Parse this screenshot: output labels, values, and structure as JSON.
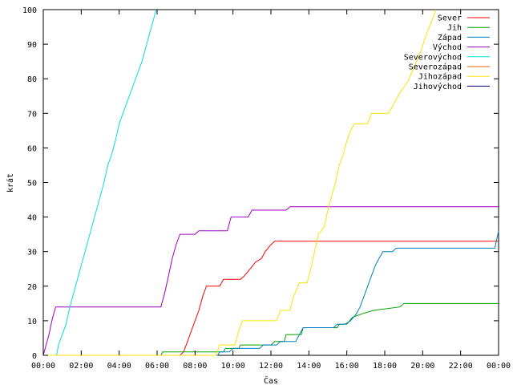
{
  "chart_data": {
    "type": "line",
    "xlabel": "Čas",
    "ylabel": "krát",
    "xlim": [
      0,
      24
    ],
    "ylim": [
      0,
      100
    ],
    "x_ticks": [
      {
        "x": 0,
        "label": "00:00"
      },
      {
        "x": 2,
        "label": "02:00"
      },
      {
        "x": 4,
        "label": "04:00"
      },
      {
        "x": 6,
        "label": "06:00"
      },
      {
        "x": 8,
        "label": "08:00"
      },
      {
        "x": 10,
        "label": "10:00"
      },
      {
        "x": 12,
        "label": "12:00"
      },
      {
        "x": 14,
        "label": "14:00"
      },
      {
        "x": 16,
        "label": "16:00"
      },
      {
        "x": 18,
        "label": "18:00"
      },
      {
        "x": 20,
        "label": "20:00"
      },
      {
        "x": 22,
        "label": "22:00"
      },
      {
        "x": 24,
        "label": "00:00"
      }
    ],
    "y_ticks": [
      0,
      10,
      20,
      30,
      40,
      50,
      60,
      70,
      80,
      90,
      100
    ],
    "grid": false,
    "legend_position": "top-right",
    "series": [
      {
        "name": "Sever",
        "color": "#ff0000",
        "points": [
          [
            0,
            0
          ],
          [
            7.2,
            0
          ],
          [
            7.4,
            1
          ],
          [
            7.6,
            4
          ],
          [
            7.8,
            7
          ],
          [
            8.0,
            10
          ],
          [
            8.2,
            13
          ],
          [
            8.4,
            17
          ],
          [
            8.6,
            20
          ],
          [
            9.3,
            20
          ],
          [
            9.5,
            22
          ],
          [
            10.4,
            22
          ],
          [
            10.6,
            23
          ],
          [
            10.9,
            25
          ],
          [
            11.2,
            27
          ],
          [
            11.5,
            28
          ],
          [
            11.7,
            30
          ],
          [
            12.0,
            32
          ],
          [
            12.2,
            33
          ],
          [
            24,
            33
          ]
        ]
      },
      {
        "name": "Jih",
        "color": "#00a000",
        "points": [
          [
            0,
            0
          ],
          [
            6.2,
            0
          ],
          [
            6.3,
            1
          ],
          [
            9.5,
            1
          ],
          [
            9.6,
            2
          ],
          [
            10.3,
            2
          ],
          [
            10.4,
            3
          ],
          [
            12.0,
            3
          ],
          [
            12.2,
            4
          ],
          [
            12.7,
            4
          ],
          [
            12.8,
            6
          ],
          [
            13.6,
            6
          ],
          [
            13.7,
            8
          ],
          [
            15.5,
            8
          ],
          [
            15.6,
            9
          ],
          [
            16.0,
            9
          ],
          [
            16.3,
            11
          ],
          [
            16.8,
            12
          ],
          [
            17.4,
            13
          ],
          [
            18.8,
            14
          ],
          [
            19.0,
            15
          ],
          [
            24,
            15
          ]
        ]
      },
      {
        "name": "Západ",
        "color": "#0080c0",
        "points": [
          [
            0,
            0
          ],
          [
            9.2,
            0
          ],
          [
            9.3,
            1
          ],
          [
            9.8,
            1
          ],
          [
            10.0,
            2
          ],
          [
            11.4,
            2
          ],
          [
            11.6,
            3
          ],
          [
            12.3,
            3
          ],
          [
            12.5,
            4
          ],
          [
            13.3,
            4
          ],
          [
            13.5,
            6
          ],
          [
            13.7,
            8
          ],
          [
            15.3,
            8
          ],
          [
            15.5,
            9
          ],
          [
            15.9,
            9
          ],
          [
            16.2,
            10
          ],
          [
            16.5,
            12
          ],
          [
            16.7,
            14
          ],
          [
            16.9,
            17
          ],
          [
            17.1,
            20
          ],
          [
            17.3,
            23
          ],
          [
            17.5,
            26
          ],
          [
            17.7,
            28
          ],
          [
            17.9,
            30
          ],
          [
            18.4,
            30
          ],
          [
            18.6,
            31
          ],
          [
            23.8,
            31
          ],
          [
            24,
            36
          ]
        ]
      },
      {
        "name": "Východ",
        "color": "#a000c0",
        "points": [
          [
            0,
            0
          ],
          [
            0.15,
            3
          ],
          [
            0.3,
            6
          ],
          [
            0.45,
            10
          ],
          [
            0.55,
            12
          ],
          [
            0.65,
            14
          ],
          [
            6.2,
            14
          ],
          [
            6.4,
            18
          ],
          [
            6.6,
            23
          ],
          [
            6.8,
            28
          ],
          [
            7.0,
            32
          ],
          [
            7.2,
            35
          ],
          [
            8.0,
            35
          ],
          [
            8.2,
            36
          ],
          [
            9.7,
            36
          ],
          [
            9.9,
            40
          ],
          [
            10.8,
            40
          ],
          [
            11.0,
            42
          ],
          [
            12.8,
            42
          ],
          [
            13.0,
            43
          ],
          [
            24,
            43
          ]
        ]
      },
      {
        "name": "Severovýchod",
        "color": "#00e0e0",
        "points": [
          [
            0,
            0
          ],
          [
            0.7,
            0
          ],
          [
            0.8,
            3
          ],
          [
            1.0,
            6
          ],
          [
            1.2,
            9
          ],
          [
            1.4,
            14
          ],
          [
            1.6,
            18
          ],
          [
            1.8,
            22
          ],
          [
            2.0,
            26
          ],
          [
            2.2,
            30
          ],
          [
            2.4,
            34
          ],
          [
            2.6,
            38
          ],
          [
            2.8,
            42
          ],
          [
            3.0,
            46
          ],
          [
            3.2,
            50
          ],
          [
            3.4,
            55
          ],
          [
            3.6,
            58
          ],
          [
            3.8,
            62
          ],
          [
            4.0,
            67
          ],
          [
            4.2,
            70
          ],
          [
            4.4,
            73
          ],
          [
            4.6,
            76
          ],
          [
            4.8,
            79
          ],
          [
            5.0,
            82
          ],
          [
            5.2,
            85
          ],
          [
            5.4,
            89
          ],
          [
            5.6,
            93
          ],
          [
            5.8,
            97
          ],
          [
            5.95,
            100
          ]
        ]
      },
      {
        "name": "Severozápad",
        "color": "#e06000",
        "points": []
      },
      {
        "name": "Jihozápad",
        "color": "#ffe000",
        "points": [
          [
            0,
            0
          ],
          [
            9.1,
            0
          ],
          [
            9.3,
            3
          ],
          [
            10.1,
            3
          ],
          [
            10.3,
            7
          ],
          [
            10.5,
            10
          ],
          [
            12.3,
            10
          ],
          [
            12.5,
            13
          ],
          [
            13.0,
            13
          ],
          [
            13.2,
            17
          ],
          [
            13.5,
            21
          ],
          [
            13.9,
            21
          ],
          [
            14.1,
            25
          ],
          [
            14.3,
            30
          ],
          [
            14.5,
            35
          ],
          [
            14.8,
            37
          ],
          [
            15.0,
            42
          ],
          [
            15.2,
            46
          ],
          [
            15.4,
            50
          ],
          [
            15.6,
            55
          ],
          [
            15.8,
            58
          ],
          [
            16.0,
            62
          ],
          [
            16.2,
            65
          ],
          [
            16.4,
            67
          ],
          [
            17.1,
            67
          ],
          [
            17.3,
            70
          ],
          [
            18.2,
            70
          ],
          [
            18.4,
            72
          ],
          [
            18.8,
            76
          ],
          [
            19.2,
            79
          ],
          [
            19.6,
            84
          ],
          [
            19.9,
            88
          ],
          [
            20.2,
            93
          ],
          [
            20.5,
            97
          ],
          [
            20.7,
            100
          ]
        ]
      },
      {
        "name": "Jihovýchod",
        "color": "#000080",
        "points": []
      }
    ]
  }
}
